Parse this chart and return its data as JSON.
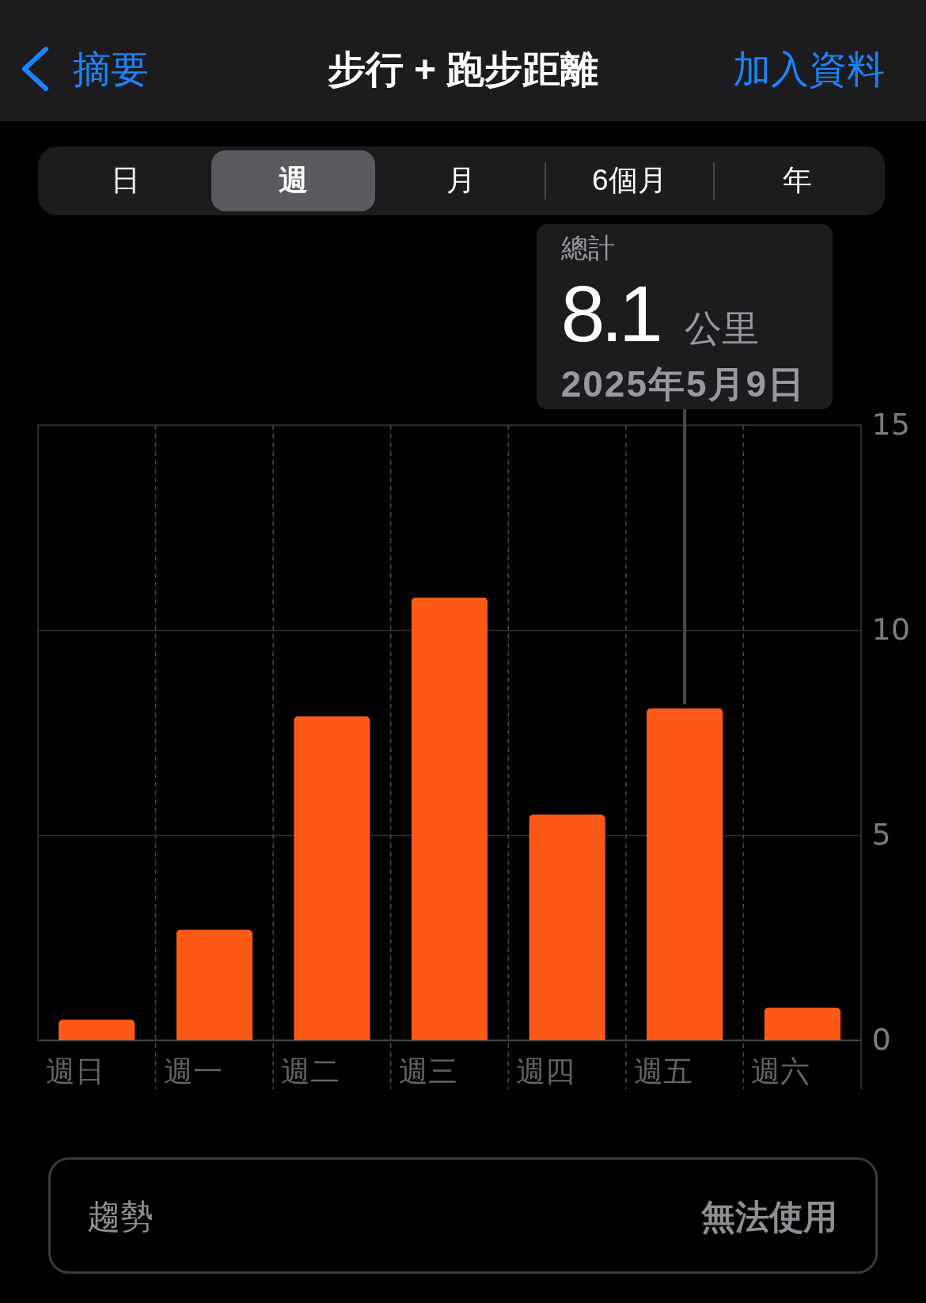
{
  "chart_data": {
    "type": "bar",
    "title": "步行 + 跑步距離",
    "categories": [
      "週日",
      "週一",
      "週二",
      "週三",
      "週四",
      "週五",
      "週六"
    ],
    "values": [
      0.5,
      2.7,
      7.9,
      10.8,
      5.5,
      8.1,
      0.8
    ],
    "value_labels": [
      null,
      null,
      null,
      null,
      null,
      "8.1",
      null
    ],
    "color": "#fe5a17",
    "ylim": [
      0,
      15
    ],
    "yticks": [
      0,
      5,
      10,
      15
    ],
    "grid": true,
    "annotations": [
      "摘要",
      "加入資料",
      "日",
      "週",
      "月",
      "6個月",
      "年",
      "總計",
      "公里",
      "2025年5月9日",
      "趨勢",
      "無法使用"
    ]
  }
}
